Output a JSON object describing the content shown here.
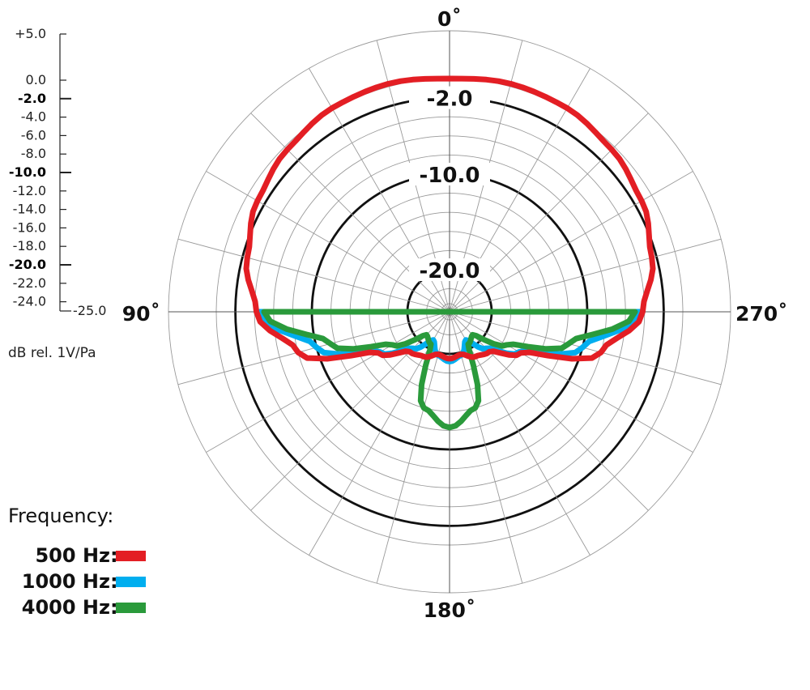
{
  "chart_data": {
    "type": "polar",
    "unit_label": "dB rel. 1V/Pa",
    "scale": {
      "ticks": [
        {
          "label": "+5.0",
          "value": 5,
          "bold": false
        },
        {
          "label": "0.0",
          "value": 0,
          "bold": false
        },
        {
          "label": "-2.0",
          "value": -2,
          "bold": true
        },
        {
          "label": "-4.0",
          "value": -4,
          "bold": false
        },
        {
          "label": "-6.0",
          "value": -6,
          "bold": false
        },
        {
          "label": "-8.0",
          "value": -8,
          "bold": false
        },
        {
          "label": "-10.0",
          "value": -10,
          "bold": true
        },
        {
          "label": "-12.0",
          "value": -12,
          "bold": false
        },
        {
          "label": "-14.0",
          "value": -14,
          "bold": false
        },
        {
          "label": "-16.0",
          "value": -16,
          "bold": false
        },
        {
          "label": "-18.0",
          "value": -18,
          "bold": false
        },
        {
          "label": "-20.0",
          "value": -20,
          "bold": true
        },
        {
          "label": "-22.0",
          "value": -22,
          "bold": false
        },
        {
          "label": "-24.0",
          "value": -24,
          "bold": false
        },
        {
          "label": "-25.0",
          "value": -25,
          "bold": false
        }
      ]
    },
    "rings": [
      5,
      0,
      -2,
      -4,
      -6,
      -8,
      -10,
      -12,
      -14,
      -16,
      -18,
      -20,
      -22,
      -24
    ],
    "highlight_rings": [
      {
        "value": -2,
        "label": "-2.0"
      },
      {
        "value": -10,
        "label": "-10.0"
      },
      {
        "value": -20,
        "label": "-20.0"
      }
    ],
    "angle_labels": [
      {
        "angle": 0,
        "label": "0˚"
      },
      {
        "angle": 90,
        "label": "90˚"
      },
      {
        "angle": 180,
        "label": "180˚"
      },
      {
        "angle": 270,
        "label": "270˚"
      }
    ],
    "legend": {
      "title": "Frequency:",
      "position": "bottom-left"
    },
    "series": [
      {
        "name": "500 Hz",
        "color": "#e31e24",
        "angles": [
          0,
          15,
          30,
          45,
          60,
          75,
          90,
          105,
          120,
          135,
          150,
          165,
          180
        ],
        "values": [
          0.0,
          0.3,
          0.2,
          -0.4,
          -1.2,
          -2.5,
          -4.2,
          -8.0,
          -15.8,
          -18.5,
          -19.0,
          -19.8,
          -19.5
        ]
      },
      {
        "name": "1000 Hz",
        "color": "#00aeef",
        "angles": [
          90,
          105,
          120,
          135,
          150,
          165,
          180
        ],
        "values": [
          -4.5,
          -10.0,
          -16.0,
          -19.0,
          -21.0,
          -19.7,
          -19.2
        ]
      },
      {
        "name": "4000 Hz",
        "color": "#2a9a3b",
        "angles": [
          90,
          105,
          120,
          135,
          150,
          165,
          180
        ],
        "values": [
          -5.0,
          -11.5,
          -17.5,
          -21.0,
          -20.5,
          -14.0,
          -12.3
        ]
      }
    ]
  }
}
